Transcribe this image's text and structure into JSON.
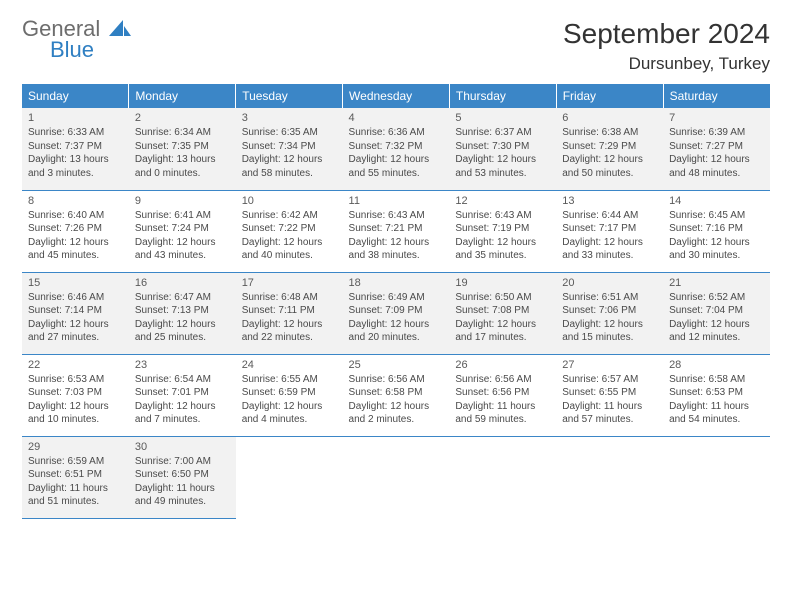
{
  "logo": {
    "line1": "General",
    "line2": "Blue",
    "color_gray": "#6d6d6d",
    "color_blue": "#2f7fc2"
  },
  "title": "September 2024",
  "location": "Dursunbey, Turkey",
  "header_bg": "#3b86c7",
  "header_fg": "#ffffff",
  "row_alt_bg": "#f2f2f2",
  "border_color": "#3b86c7",
  "text_color": "#4a4a4a",
  "title_color": "#333333",
  "weekdays": [
    "Sunday",
    "Monday",
    "Tuesday",
    "Wednesday",
    "Thursday",
    "Friday",
    "Saturday"
  ],
  "weeks": [
    [
      {
        "day": "1",
        "sunrise": "Sunrise: 6:33 AM",
        "sunset": "Sunset: 7:37 PM",
        "dl1": "Daylight: 13 hours",
        "dl2": "and 3 minutes."
      },
      {
        "day": "2",
        "sunrise": "Sunrise: 6:34 AM",
        "sunset": "Sunset: 7:35 PM",
        "dl1": "Daylight: 13 hours",
        "dl2": "and 0 minutes."
      },
      {
        "day": "3",
        "sunrise": "Sunrise: 6:35 AM",
        "sunset": "Sunset: 7:34 PM",
        "dl1": "Daylight: 12 hours",
        "dl2": "and 58 minutes."
      },
      {
        "day": "4",
        "sunrise": "Sunrise: 6:36 AM",
        "sunset": "Sunset: 7:32 PM",
        "dl1": "Daylight: 12 hours",
        "dl2": "and 55 minutes."
      },
      {
        "day": "5",
        "sunrise": "Sunrise: 6:37 AM",
        "sunset": "Sunset: 7:30 PM",
        "dl1": "Daylight: 12 hours",
        "dl2": "and 53 minutes."
      },
      {
        "day": "6",
        "sunrise": "Sunrise: 6:38 AM",
        "sunset": "Sunset: 7:29 PM",
        "dl1": "Daylight: 12 hours",
        "dl2": "and 50 minutes."
      },
      {
        "day": "7",
        "sunrise": "Sunrise: 6:39 AM",
        "sunset": "Sunset: 7:27 PM",
        "dl1": "Daylight: 12 hours",
        "dl2": "and 48 minutes."
      }
    ],
    [
      {
        "day": "8",
        "sunrise": "Sunrise: 6:40 AM",
        "sunset": "Sunset: 7:26 PM",
        "dl1": "Daylight: 12 hours",
        "dl2": "and 45 minutes."
      },
      {
        "day": "9",
        "sunrise": "Sunrise: 6:41 AM",
        "sunset": "Sunset: 7:24 PM",
        "dl1": "Daylight: 12 hours",
        "dl2": "and 43 minutes."
      },
      {
        "day": "10",
        "sunrise": "Sunrise: 6:42 AM",
        "sunset": "Sunset: 7:22 PM",
        "dl1": "Daylight: 12 hours",
        "dl2": "and 40 minutes."
      },
      {
        "day": "11",
        "sunrise": "Sunrise: 6:43 AM",
        "sunset": "Sunset: 7:21 PM",
        "dl1": "Daylight: 12 hours",
        "dl2": "and 38 minutes."
      },
      {
        "day": "12",
        "sunrise": "Sunrise: 6:43 AM",
        "sunset": "Sunset: 7:19 PM",
        "dl1": "Daylight: 12 hours",
        "dl2": "and 35 minutes."
      },
      {
        "day": "13",
        "sunrise": "Sunrise: 6:44 AM",
        "sunset": "Sunset: 7:17 PM",
        "dl1": "Daylight: 12 hours",
        "dl2": "and 33 minutes."
      },
      {
        "day": "14",
        "sunrise": "Sunrise: 6:45 AM",
        "sunset": "Sunset: 7:16 PM",
        "dl1": "Daylight: 12 hours",
        "dl2": "and 30 minutes."
      }
    ],
    [
      {
        "day": "15",
        "sunrise": "Sunrise: 6:46 AM",
        "sunset": "Sunset: 7:14 PM",
        "dl1": "Daylight: 12 hours",
        "dl2": "and 27 minutes."
      },
      {
        "day": "16",
        "sunrise": "Sunrise: 6:47 AM",
        "sunset": "Sunset: 7:13 PM",
        "dl1": "Daylight: 12 hours",
        "dl2": "and 25 minutes."
      },
      {
        "day": "17",
        "sunrise": "Sunrise: 6:48 AM",
        "sunset": "Sunset: 7:11 PM",
        "dl1": "Daylight: 12 hours",
        "dl2": "and 22 minutes."
      },
      {
        "day": "18",
        "sunrise": "Sunrise: 6:49 AM",
        "sunset": "Sunset: 7:09 PM",
        "dl1": "Daylight: 12 hours",
        "dl2": "and 20 minutes."
      },
      {
        "day": "19",
        "sunrise": "Sunrise: 6:50 AM",
        "sunset": "Sunset: 7:08 PM",
        "dl1": "Daylight: 12 hours",
        "dl2": "and 17 minutes."
      },
      {
        "day": "20",
        "sunrise": "Sunrise: 6:51 AM",
        "sunset": "Sunset: 7:06 PM",
        "dl1": "Daylight: 12 hours",
        "dl2": "and 15 minutes."
      },
      {
        "day": "21",
        "sunrise": "Sunrise: 6:52 AM",
        "sunset": "Sunset: 7:04 PM",
        "dl1": "Daylight: 12 hours",
        "dl2": "and 12 minutes."
      }
    ],
    [
      {
        "day": "22",
        "sunrise": "Sunrise: 6:53 AM",
        "sunset": "Sunset: 7:03 PM",
        "dl1": "Daylight: 12 hours",
        "dl2": "and 10 minutes."
      },
      {
        "day": "23",
        "sunrise": "Sunrise: 6:54 AM",
        "sunset": "Sunset: 7:01 PM",
        "dl1": "Daylight: 12 hours",
        "dl2": "and 7 minutes."
      },
      {
        "day": "24",
        "sunrise": "Sunrise: 6:55 AM",
        "sunset": "Sunset: 6:59 PM",
        "dl1": "Daylight: 12 hours",
        "dl2": "and 4 minutes."
      },
      {
        "day": "25",
        "sunrise": "Sunrise: 6:56 AM",
        "sunset": "Sunset: 6:58 PM",
        "dl1": "Daylight: 12 hours",
        "dl2": "and 2 minutes."
      },
      {
        "day": "26",
        "sunrise": "Sunrise: 6:56 AM",
        "sunset": "Sunset: 6:56 PM",
        "dl1": "Daylight: 11 hours",
        "dl2": "and 59 minutes."
      },
      {
        "day": "27",
        "sunrise": "Sunrise: 6:57 AM",
        "sunset": "Sunset: 6:55 PM",
        "dl1": "Daylight: 11 hours",
        "dl2": "and 57 minutes."
      },
      {
        "day": "28",
        "sunrise": "Sunrise: 6:58 AM",
        "sunset": "Sunset: 6:53 PM",
        "dl1": "Daylight: 11 hours",
        "dl2": "and 54 minutes."
      }
    ],
    [
      {
        "day": "29",
        "sunrise": "Sunrise: 6:59 AM",
        "sunset": "Sunset: 6:51 PM",
        "dl1": "Daylight: 11 hours",
        "dl2": "and 51 minutes."
      },
      {
        "day": "30",
        "sunrise": "Sunrise: 7:00 AM",
        "sunset": "Sunset: 6:50 PM",
        "dl1": "Daylight: 11 hours",
        "dl2": "and 49 minutes."
      },
      null,
      null,
      null,
      null,
      null
    ]
  ]
}
